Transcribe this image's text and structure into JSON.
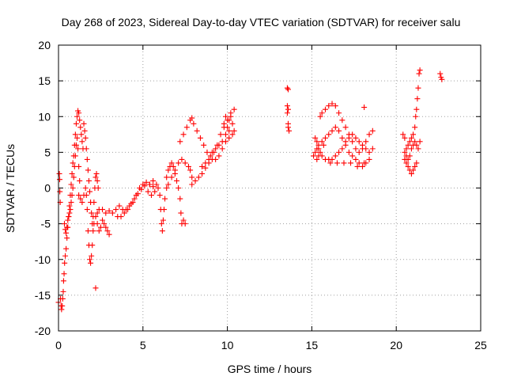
{
  "chart_data": {
    "type": "scatter",
    "title": "Day 268 of 2023, Sidereal Day-to-day VTEC variation (SDTVAR) for receiver salu",
    "xlabel": "GPS time / hours",
    "ylabel": "SDTVAR / TECUs",
    "xlim": [
      0,
      25
    ],
    "ylim": [
      -20,
      20
    ],
    "xticks": [
      0,
      5,
      10,
      15,
      20,
      25
    ],
    "yticks": [
      -20,
      -15,
      -10,
      -5,
      0,
      5,
      10,
      15,
      20
    ],
    "grid": true,
    "marker": "+",
    "color": "#ff0000",
    "series": [
      {
        "name": "SDTVAR",
        "points": [
          [
            0.0,
            -16.0
          ],
          [
            0.05,
            2.0
          ],
          [
            0.07,
            1.2
          ],
          [
            0.08,
            -0.5
          ],
          [
            0.1,
            -2.0
          ],
          [
            0.12,
            -15.5
          ],
          [
            0.15,
            -16.5
          ],
          [
            0.18,
            -17.0
          ],
          [
            0.22,
            -16.5
          ],
          [
            0.25,
            -15.5
          ],
          [
            0.28,
            -14.5
          ],
          [
            0.3,
            -13.0
          ],
          [
            0.33,
            -12.0
          ],
          [
            0.36,
            -10.5
          ],
          [
            0.4,
            -9.5
          ],
          [
            0.45,
            -8.5
          ],
          [
            0.5,
            -7.0
          ],
          [
            0.55,
            -5.5
          ],
          [
            0.6,
            -4.0
          ],
          [
            0.65,
            -2.5
          ],
          [
            0.7,
            -1.0
          ],
          [
            0.75,
            0.5
          ],
          [
            0.8,
            2.0
          ],
          [
            0.85,
            3.5
          ],
          [
            0.9,
            4.5
          ],
          [
            0.95,
            6.0
          ],
          [
            1.0,
            7.5
          ],
          [
            1.05,
            9.0
          ],
          [
            1.1,
            10.0
          ],
          [
            1.15,
            10.8
          ],
          [
            1.2,
            10.5
          ],
          [
            1.25,
            9.5
          ],
          [
            1.3,
            8.5
          ],
          [
            1.35,
            7.5
          ],
          [
            1.4,
            6.5
          ],
          [
            1.45,
            5.5
          ],
          [
            0.35,
            -5.0
          ],
          [
            0.4,
            -5.8
          ],
          [
            0.45,
            -6.3
          ],
          [
            0.5,
            -5.5
          ],
          [
            0.55,
            -4.5
          ],
          [
            0.6,
            -4.0
          ],
          [
            0.65,
            -3.5
          ],
          [
            0.7,
            -3.0
          ],
          [
            0.75,
            -2.0
          ],
          [
            0.8,
            -1.0
          ],
          [
            0.85,
            0.0
          ],
          [
            0.9,
            1.5
          ],
          [
            0.95,
            3.0
          ],
          [
            1.0,
            4.5
          ],
          [
            1.05,
            6.0
          ],
          [
            1.1,
            7.0
          ],
          [
            1.15,
            5.5
          ],
          [
            1.2,
            3.0
          ],
          [
            1.25,
            1.0
          ],
          [
            1.5,
            9.0
          ],
          [
            1.55,
            8.0
          ],
          [
            1.6,
            7.0
          ],
          [
            1.65,
            5.5
          ],
          [
            1.7,
            4.0
          ],
          [
            1.75,
            2.5
          ],
          [
            1.8,
            1.0
          ],
          [
            1.85,
            -0.5
          ],
          [
            1.9,
            -2.0
          ],
          [
            1.95,
            -3.5
          ],
          [
            2.0,
            -5.0
          ],
          [
            2.05,
            -4.0
          ],
          [
            2.1,
            -2.0
          ],
          [
            2.15,
            0.0
          ],
          [
            2.2,
            1.5
          ],
          [
            2.25,
            2.0
          ],
          [
            2.3,
            1.0
          ],
          [
            2.35,
            0.0
          ],
          [
            1.2,
            -1.0
          ],
          [
            1.3,
            -1.5
          ],
          [
            1.4,
            -2.0
          ],
          [
            1.5,
            -1.0
          ],
          [
            1.6,
            0.0
          ],
          [
            1.65,
            -1.0
          ],
          [
            1.7,
            -3.0
          ],
          [
            1.75,
            -6.0
          ],
          [
            1.8,
            -8.0
          ],
          [
            1.85,
            -10.0
          ],
          [
            1.9,
            -10.5
          ],
          [
            1.95,
            -9.5
          ],
          [
            2.0,
            -8.0
          ],
          [
            2.05,
            -6.0
          ],
          [
            2.1,
            -5.0
          ],
          [
            2.2,
            -4.0
          ],
          [
            2.3,
            -5.0
          ],
          [
            2.4,
            -6.0
          ],
          [
            2.5,
            -5.5
          ],
          [
            2.6,
            -4.5
          ],
          [
            2.7,
            -5.0
          ],
          [
            2.8,
            -5.5
          ],
          [
            2.9,
            -6.0
          ],
          [
            3.0,
            -6.5
          ],
          [
            2.2,
            -14.0
          ],
          [
            2.3,
            -3.5
          ],
          [
            2.4,
            -3.0
          ],
          [
            2.6,
            -3.0
          ],
          [
            2.8,
            -3.5
          ],
          [
            3.0,
            -3.2
          ],
          [
            3.2,
            -3.5
          ],
          [
            3.4,
            -3.0
          ],
          [
            3.6,
            -2.5
          ],
          [
            3.8,
            -3.0
          ],
          [
            4.0,
            -3.0
          ],
          [
            4.2,
            -2.5
          ],
          [
            4.4,
            -2.0
          ],
          [
            4.6,
            -1.0
          ],
          [
            4.8,
            0.0
          ],
          [
            5.0,
            0.5
          ],
          [
            5.2,
            0.8
          ],
          [
            5.4,
            0.5
          ],
          [
            5.6,
            0.2
          ],
          [
            3.5,
            -4.0
          ],
          [
            3.7,
            -4.0
          ],
          [
            3.9,
            -3.5
          ],
          [
            4.1,
            -3.0
          ],
          [
            4.3,
            -2.2
          ],
          [
            4.5,
            -1.5
          ],
          [
            4.7,
            -0.8
          ],
          [
            4.9,
            -0.2
          ],
          [
            5.1,
            0.3
          ],
          [
            5.3,
            -0.5
          ],
          [
            5.5,
            -1.0
          ],
          [
            5.7,
            -0.5
          ],
          [
            5.9,
            0.0
          ],
          [
            5.4,
            0.5
          ],
          [
            5.6,
            1.0
          ],
          [
            5.8,
            0.5
          ],
          [
            6.0,
            -1.0
          ],
          [
            6.05,
            -3.0
          ],
          [
            6.1,
            -5.0
          ],
          [
            6.15,
            -6.0
          ],
          [
            6.2,
            -4.5
          ],
          [
            6.25,
            -3.0
          ],
          [
            6.3,
            -1.5
          ],
          [
            6.4,
            0.0
          ],
          [
            6.4,
            1.5
          ],
          [
            6.5,
            2.5
          ],
          [
            6.6,
            3.0
          ],
          [
            6.7,
            3.5
          ],
          [
            6.8,
            3.0
          ],
          [
            6.9,
            2.0
          ],
          [
            7.0,
            1.0
          ],
          [
            7.1,
            0.0
          ],
          [
            7.2,
            -1.5
          ],
          [
            7.25,
            -3.5
          ],
          [
            7.3,
            -5.0
          ],
          [
            7.4,
            -4.5
          ],
          [
            7.5,
            -5.0
          ],
          [
            6.5,
            0.5
          ],
          [
            6.7,
            1.5
          ],
          [
            6.9,
            2.5
          ],
          [
            7.1,
            3.5
          ],
          [
            7.3,
            4.0
          ],
          [
            7.5,
            3.5
          ],
          [
            7.7,
            3.0
          ],
          [
            7.8,
            2.5
          ],
          [
            7.9,
            1.5
          ],
          [
            7.2,
            6.5
          ],
          [
            7.4,
            7.5
          ],
          [
            7.6,
            8.5
          ],
          [
            7.8,
            9.5
          ],
          [
            7.9,
            9.8
          ],
          [
            8.0,
            9.0
          ],
          [
            8.2,
            8.0
          ],
          [
            8.4,
            7.0
          ],
          [
            8.6,
            6.0
          ],
          [
            8.8,
            5.0
          ],
          [
            9.0,
            4.5
          ],
          [
            9.2,
            5.0
          ],
          [
            9.4,
            6.0
          ],
          [
            9.6,
            7.5
          ],
          [
            9.8,
            8.5
          ],
          [
            10.0,
            9.5
          ],
          [
            10.2,
            10.5
          ],
          [
            10.4,
            11.0
          ],
          [
            7.9,
            0.5
          ],
          [
            8.1,
            1.0
          ],
          [
            8.3,
            1.5
          ],
          [
            8.5,
            2.0
          ],
          [
            8.7,
            2.8
          ],
          [
            8.9,
            3.5
          ],
          [
            9.1,
            4.0
          ],
          [
            9.3,
            4.0
          ],
          [
            9.5,
            4.5
          ],
          [
            9.7,
            5.5
          ],
          [
            9.9,
            6.5
          ],
          [
            10.1,
            7.0
          ],
          [
            10.3,
            7.5
          ],
          [
            10.4,
            8.0
          ],
          [
            9.8,
            9.0
          ],
          [
            9.9,
            10.0
          ],
          [
            10.0,
            8.5
          ],
          [
            10.1,
            9.5
          ],
          [
            10.2,
            10.0
          ],
          [
            8.5,
            3.0
          ],
          [
            8.7,
            3.5
          ],
          [
            8.9,
            4.0
          ],
          [
            9.1,
            5.0
          ],
          [
            9.3,
            5.5
          ],
          [
            9.5,
            6.0
          ],
          [
            9.7,
            6.5
          ],
          [
            9.9,
            7.5
          ],
          [
            10.1,
            8.0
          ],
          [
            10.3,
            9.0
          ],
          [
            13.55,
            14.0
          ],
          [
            13.6,
            13.8
          ],
          [
            13.55,
            11.5
          ],
          [
            13.6,
            11.0
          ],
          [
            13.55,
            10.5
          ],
          [
            13.6,
            9.0
          ],
          [
            13.6,
            8.5
          ],
          [
            13.65,
            8.0
          ],
          [
            15.2,
            7.0
          ],
          [
            15.3,
            6.5
          ],
          [
            15.4,
            5.5
          ],
          [
            15.2,
            5.0
          ],
          [
            15.1,
            4.5
          ],
          [
            15.3,
            4.0
          ],
          [
            15.5,
            10.0
          ],
          [
            15.6,
            10.5
          ],
          [
            15.8,
            11.0
          ],
          [
            16.0,
            11.5
          ],
          [
            16.2,
            11.8
          ],
          [
            16.4,
            11.5
          ],
          [
            16.6,
            10.5
          ],
          [
            16.8,
            9.5
          ],
          [
            17.0,
            8.5
          ],
          [
            17.2,
            7.5
          ],
          [
            17.4,
            6.5
          ],
          [
            17.6,
            5.5
          ],
          [
            17.8,
            5.0
          ],
          [
            18.0,
            5.5
          ],
          [
            18.2,
            6.5
          ],
          [
            18.4,
            7.5
          ],
          [
            18.6,
            8.0
          ],
          [
            15.4,
            6.0
          ],
          [
            15.6,
            6.5
          ],
          [
            15.8,
            7.0
          ],
          [
            16.0,
            7.5
          ],
          [
            16.2,
            8.0
          ],
          [
            16.4,
            8.5
          ],
          [
            16.6,
            8.0
          ],
          [
            16.8,
            7.0
          ],
          [
            17.0,
            6.0
          ],
          [
            17.2,
            5.0
          ],
          [
            17.4,
            4.5
          ],
          [
            17.6,
            4.0
          ],
          [
            17.8,
            3.5
          ],
          [
            18.0,
            3.0
          ],
          [
            18.2,
            3.5
          ],
          [
            18.4,
            4.0
          ],
          [
            15.4,
            4.5
          ],
          [
            15.6,
            4.5
          ],
          [
            15.8,
            4.0
          ],
          [
            16.0,
            4.0
          ],
          [
            16.2,
            4.0
          ],
          [
            16.4,
            4.5
          ],
          [
            16.6,
            5.0
          ],
          [
            16.8,
            5.5
          ],
          [
            17.0,
            6.5
          ],
          [
            17.2,
            7.0
          ],
          [
            17.4,
            7.5
          ],
          [
            17.6,
            7.0
          ],
          [
            17.8,
            6.5
          ],
          [
            18.0,
            6.0
          ],
          [
            18.2,
            5.5
          ],
          [
            18.4,
            5.0
          ],
          [
            18.6,
            5.5
          ],
          [
            15.3,
            5.5
          ],
          [
            15.5,
            5.0
          ],
          [
            15.7,
            6.0
          ],
          [
            16.1,
            3.5
          ],
          [
            16.5,
            3.5
          ],
          [
            16.9,
            3.5
          ],
          [
            17.3,
            3.5
          ],
          [
            17.7,
            3.0
          ],
          [
            18.1,
            3.5
          ],
          [
            18.1,
            11.3
          ],
          [
            20.4,
            7.5
          ],
          [
            20.5,
            7.0
          ],
          [
            20.5,
            5.0
          ],
          [
            20.5,
            4.0
          ],
          [
            20.6,
            3.5
          ],
          [
            20.7,
            3.0
          ],
          [
            20.8,
            2.5
          ],
          [
            20.9,
            2.0
          ],
          [
            21.0,
            2.5
          ],
          [
            21.1,
            3.0
          ],
          [
            21.2,
            3.5
          ],
          [
            20.6,
            5.5
          ],
          [
            20.7,
            6.0
          ],
          [
            20.8,
            6.5
          ],
          [
            20.9,
            7.0
          ],
          [
            21.0,
            7.5
          ],
          [
            21.1,
            8.5
          ],
          [
            21.15,
            10.0
          ],
          [
            21.2,
            11.0
          ],
          [
            21.25,
            12.5
          ],
          [
            21.3,
            14.0
          ],
          [
            21.35,
            16.0
          ],
          [
            21.4,
            16.5
          ],
          [
            20.6,
            4.5
          ],
          [
            20.7,
            4.0
          ],
          [
            20.8,
            4.5
          ],
          [
            20.9,
            5.5
          ],
          [
            21.0,
            6.0
          ],
          [
            21.1,
            6.5
          ],
          [
            21.2,
            6.0
          ],
          [
            21.3,
            5.5
          ],
          [
            21.4,
            6.5
          ],
          [
            22.6,
            16.0
          ],
          [
            22.65,
            15.5
          ],
          [
            22.7,
            15.2
          ]
        ]
      }
    ]
  }
}
